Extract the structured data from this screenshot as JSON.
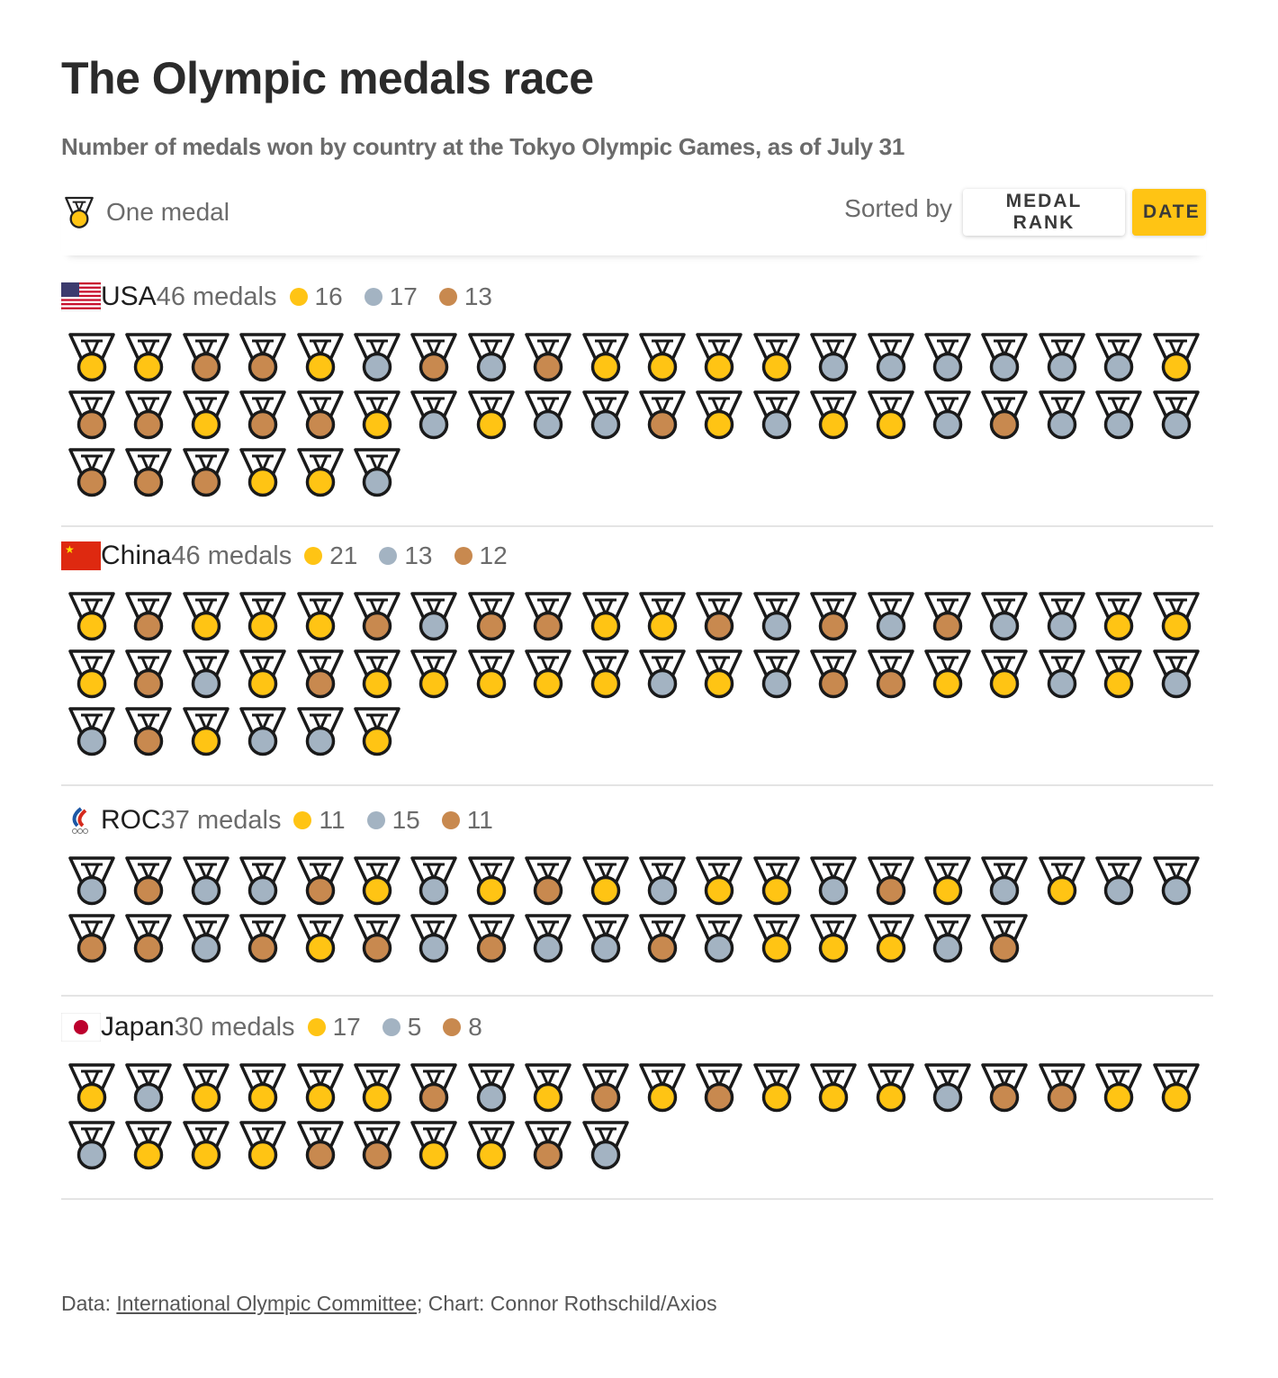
{
  "title": "The Olympic medals race",
  "subtitle": "Number of medals won by country at the Tokyo Olympic Games, as of July 31",
  "legend": {
    "icon": "medal-icon",
    "label": "One medal"
  },
  "sort": {
    "label": "Sorted by",
    "options": [
      "MEDAL RANK",
      "DATE"
    ],
    "selected": "DATE"
  },
  "colors": {
    "gold": "#ffc414",
    "silver": "#a3b3c2",
    "bronze": "#c8894f",
    "accent": "#ffc414"
  },
  "footer": {
    "prefix": "Data: ",
    "source_link": "International Olympic Committee",
    "suffix": "; Chart: Connor Rothschild/Axios"
  },
  "chart_data": {
    "type": "table",
    "countries": [
      {
        "name": "USA",
        "total_label": "46 medals",
        "gold": 16,
        "silver": 17,
        "bronze": 13,
        "flag": "usa-flag",
        "sequence": [
          "G",
          "G",
          "B",
          "B",
          "G",
          "S",
          "B",
          "S",
          "B",
          "G",
          "G",
          "G",
          "G",
          "S",
          "S",
          "S",
          "S",
          "S",
          "S",
          "G",
          "B",
          "B",
          "G",
          "B",
          "B",
          "G",
          "S",
          "G",
          "S",
          "S",
          "B",
          "G",
          "S",
          "G",
          "G",
          "S",
          "B",
          "S",
          "S",
          "S",
          "B",
          "B",
          "B",
          "G",
          "G",
          "S"
        ]
      },
      {
        "name": "China",
        "total_label": "46 medals",
        "gold": 21,
        "silver": 13,
        "bronze": 12,
        "flag": "china-flag",
        "sequence": [
          "G",
          "B",
          "G",
          "G",
          "G",
          "B",
          "S",
          "B",
          "B",
          "G",
          "G",
          "B",
          "S",
          "B",
          "S",
          "B",
          "S",
          "S",
          "G",
          "G",
          "G",
          "B",
          "S",
          "G",
          "B",
          "G",
          "G",
          "G",
          "G",
          "G",
          "S",
          "G",
          "S",
          "B",
          "B",
          "G",
          "G",
          "S",
          "G",
          "S",
          "S",
          "B",
          "G",
          "S",
          "S",
          "G"
        ]
      },
      {
        "name": "ROC",
        "total_label": "37 medals",
        "gold": 11,
        "silver": 15,
        "bronze": 11,
        "flag": "roc-flag",
        "sequence": [
          "S",
          "B",
          "S",
          "S",
          "B",
          "G",
          "S",
          "G",
          "B",
          "G",
          "S",
          "G",
          "G",
          "S",
          "B",
          "G",
          "S",
          "G",
          "S",
          "S",
          "B",
          "B",
          "S",
          "B",
          "G",
          "B",
          "S",
          "B",
          "S",
          "S",
          "B",
          "S",
          "G",
          "G",
          "G",
          "S",
          "B"
        ]
      },
      {
        "name": "Japan",
        "total_label": "30 medals",
        "gold": 17,
        "silver": 5,
        "bronze": 8,
        "flag": "japan-flag",
        "sequence": [
          "G",
          "S",
          "G",
          "G",
          "G",
          "G",
          "B",
          "S",
          "G",
          "B",
          "G",
          "B",
          "G",
          "G",
          "G",
          "S",
          "B",
          "B",
          "G",
          "G",
          "S",
          "G",
          "G",
          "G",
          "B",
          "B",
          "G",
          "G",
          "B",
          "S"
        ]
      }
    ]
  }
}
